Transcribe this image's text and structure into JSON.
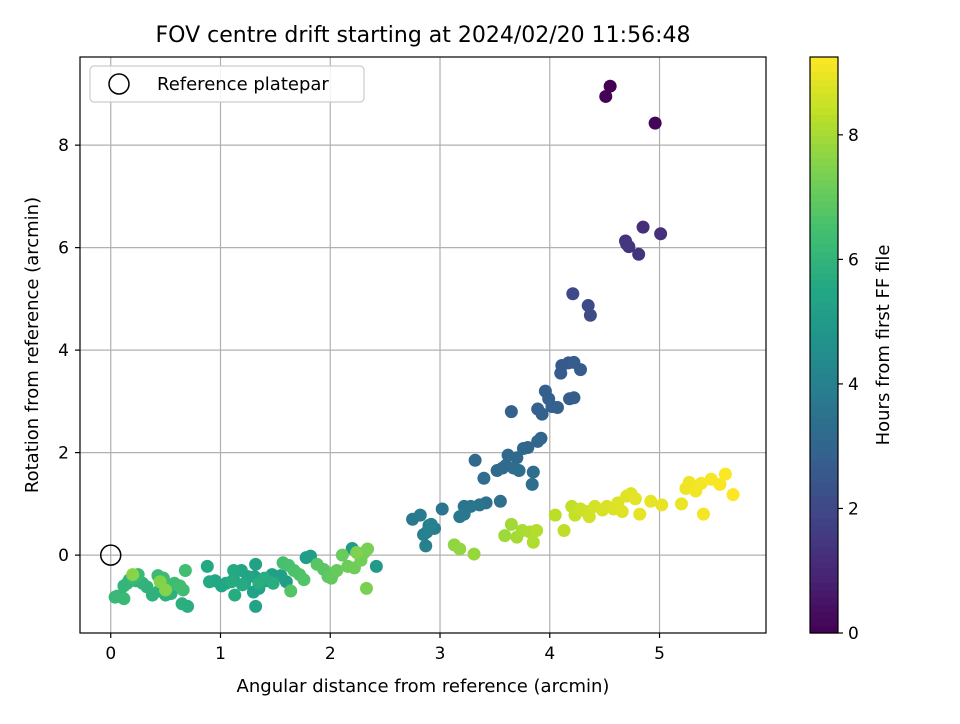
{
  "chart_data": {
    "type": "scatter",
    "title": "FOV centre drift starting at 2024/02/20 11:56:48",
    "xlabel": "Angular distance from reference (arcmin)",
    "ylabel": "Rotation from reference (arcmin)",
    "xlim": [
      -0.28,
      5.97
    ],
    "ylim": [
      -1.52,
      9.72
    ],
    "x_ticks": [
      0,
      1,
      2,
      3,
      4,
      5
    ],
    "y_ticks": [
      0,
      2,
      4,
      6,
      8
    ],
    "grid": true,
    "legend": {
      "location": "upper left",
      "entries": [
        "Reference platepar"
      ]
    },
    "colorbar": {
      "label": "Hours from first FF file",
      "range": [
        0,
        9.25
      ],
      "ticks": [
        0,
        2,
        4,
        6,
        8
      ],
      "colormap": "viridis"
    },
    "reference_point": {
      "x": 0,
      "y": 0
    },
    "points": [
      [
        4.55,
        9.15,
        0.0
      ],
      [
        4.51,
        8.95,
        0.05
      ],
      [
        4.96,
        8.43,
        0.1
      ],
      [
        4.85,
        6.4,
        1.2
      ],
      [
        5.01,
        6.27,
        1.25
      ],
      [
        4.69,
        6.13,
        1.3
      ],
      [
        4.72,
        6.02,
        1.35
      ],
      [
        4.81,
        5.87,
        1.4
      ],
      [
        4.7,
        6.07,
        1.45
      ],
      [
        4.21,
        5.1,
        2.0
      ],
      [
        4.35,
        4.87,
        2.05
      ],
      [
        4.37,
        4.68,
        2.1
      ],
      [
        4.11,
        3.7,
        2.6
      ],
      [
        4.17,
        3.75,
        2.62
      ],
      [
        4.1,
        3.55,
        2.65
      ],
      [
        4.28,
        3.62,
        2.68
      ],
      [
        4.22,
        3.76,
        2.7
      ],
      [
        4.18,
        3.05,
        2.72
      ],
      [
        4.22,
        3.07,
        2.75
      ],
      [
        3.96,
        3.2,
        2.8
      ],
      [
        3.99,
        3.05,
        2.82
      ],
      [
        4.02,
        2.9,
        2.84
      ],
      [
        4.07,
        2.88,
        2.86
      ],
      [
        3.93,
        2.75,
        2.88
      ],
      [
        3.89,
        2.85,
        2.9
      ],
      [
        3.65,
        2.8,
        2.92
      ],
      [
        3.92,
        2.28,
        3.0
      ],
      [
        3.89,
        2.22,
        3.02
      ],
      [
        3.8,
        2.1,
        3.05
      ],
      [
        3.76,
        2.08,
        3.08
      ],
      [
        3.32,
        1.85,
        3.1
      ],
      [
        3.62,
        1.95,
        3.12
      ],
      [
        3.7,
        1.9,
        3.15
      ],
      [
        3.57,
        1.7,
        3.18
      ],
      [
        3.52,
        1.65,
        3.2
      ],
      [
        3.6,
        1.75,
        3.22
      ],
      [
        3.67,
        1.7,
        3.25
      ],
      [
        3.72,
        1.65,
        3.28
      ],
      [
        3.85,
        1.62,
        3.3
      ],
      [
        3.4,
        1.5,
        3.32
      ],
      [
        3.84,
        1.38,
        3.35
      ],
      [
        3.55,
        1.05,
        3.4
      ],
      [
        3.42,
        1.02,
        3.45
      ],
      [
        3.36,
        0.98,
        3.5
      ],
      [
        3.22,
        0.95,
        3.55
      ],
      [
        3.28,
        0.95,
        3.58
      ],
      [
        3.02,
        0.9,
        3.6
      ],
      [
        3.18,
        0.75,
        3.65
      ],
      [
        3.22,
        0.8,
        3.7
      ],
      [
        2.75,
        0.7,
        3.75
      ],
      [
        2.82,
        0.78,
        3.8
      ],
      [
        2.9,
        0.58,
        3.85
      ],
      [
        2.95,
        0.52,
        3.9
      ],
      [
        2.88,
        0.45,
        3.95
      ],
      [
        2.85,
        0.4,
        4.0
      ],
      [
        2.87,
        0.18,
        4.05
      ],
      [
        2.92,
        0.6,
        4.1
      ],
      [
        2.42,
        -0.22,
        5.0
      ],
      [
        2.2,
        0.13,
        5.05
      ],
      [
        1.78,
        -0.05,
        5.1
      ],
      [
        1.82,
        -0.02,
        5.12
      ],
      [
        1.6,
        -0.52,
        5.15
      ],
      [
        1.55,
        -0.4,
        5.18
      ],
      [
        1.47,
        -0.38,
        5.2
      ],
      [
        1.42,
        -0.5,
        5.22
      ],
      [
        1.31,
        -0.42,
        5.25
      ],
      [
        1.32,
        -0.18,
        5.28
      ],
      [
        1.35,
        -0.65,
        5.3
      ],
      [
        1.3,
        -0.72,
        5.32
      ],
      [
        1.32,
        -1.0,
        5.35
      ],
      [
        1.22,
        -0.55,
        5.38
      ],
      [
        1.25,
        -0.42,
        5.4
      ],
      [
        1.19,
        -0.3,
        5.42
      ],
      [
        1.12,
        -0.48,
        5.45
      ],
      [
        1.05,
        -0.55,
        5.48
      ],
      [
        1.01,
        -0.6,
        5.5
      ],
      [
        0.95,
        -0.5,
        5.52
      ],
      [
        0.88,
        -0.22,
        5.55
      ],
      [
        0.9,
        -0.52,
        5.58
      ],
      [
        1.12,
        -0.3,
        5.6
      ],
      [
        1.1,
        -0.52,
        5.62
      ],
      [
        1.2,
        -0.58,
        5.65
      ],
      [
        1.13,
        -0.78,
        5.68
      ],
      [
        1.4,
        -0.45,
        5.7
      ],
      [
        1.48,
        -0.55,
        5.72
      ],
      [
        1.35,
        -0.55,
        5.75
      ],
      [
        0.7,
        -1.0,
        5.8
      ],
      [
        0.65,
        -0.95,
        5.82
      ],
      [
        0.55,
        -0.75,
        5.85
      ],
      [
        0.5,
        -0.78,
        5.88
      ],
      [
        0.44,
        -0.7,
        5.9
      ],
      [
        0.38,
        -0.78,
        5.92
      ],
      [
        0.33,
        -0.62,
        5.95
      ],
      [
        0.29,
        -0.55,
        5.98
      ],
      [
        0.23,
        -0.5,
        6.0
      ],
      [
        0.17,
        -0.48,
        6.02
      ],
      [
        0.15,
        -0.55,
        6.05
      ],
      [
        0.12,
        -0.6,
        6.08
      ],
      [
        0.1,
        -0.82,
        6.1
      ],
      [
        0.06,
        -0.8,
        6.12
      ],
      [
        0.04,
        -0.82,
        6.15
      ],
      [
        0.12,
        -0.85,
        6.18
      ],
      [
        0.2,
        -0.45,
        6.2
      ],
      [
        0.25,
        -0.38,
        6.22
      ],
      [
        0.43,
        -0.4,
        6.25
      ],
      [
        0.48,
        -0.45,
        6.28
      ],
      [
        0.52,
        -0.62,
        6.3
      ],
      [
        0.58,
        -0.55,
        6.32
      ],
      [
        0.66,
        -0.68,
        6.35
      ],
      [
        0.63,
        -0.6,
        6.38
      ],
      [
        0.68,
        -0.3,
        6.4
      ],
      [
        1.57,
        -0.15,
        6.5
      ],
      [
        1.62,
        -0.2,
        6.55
      ],
      [
        1.67,
        -0.3,
        6.6
      ],
      [
        1.72,
        -0.38,
        6.65
      ],
      [
        1.76,
        -0.48,
        6.7
      ],
      [
        1.64,
        -0.7,
        6.75
      ],
      [
        1.88,
        -0.18,
        6.8
      ],
      [
        1.94,
        -0.28,
        6.85
      ],
      [
        1.98,
        -0.42,
        6.9
      ],
      [
        2.03,
        -0.35,
        6.95
      ],
      [
        2.01,
        -0.45,
        7.0
      ],
      [
        2.06,
        -0.3,
        7.05
      ],
      [
        2.11,
        0.0,
        7.1
      ],
      [
        2.16,
        -0.22,
        7.15
      ],
      [
        2.22,
        -0.25,
        7.2
      ],
      [
        2.28,
        -0.1,
        7.25
      ],
      [
        2.31,
        0.05,
        7.3
      ],
      [
        2.34,
        0.12,
        7.35
      ],
      [
        2.33,
        -0.65,
        7.4
      ],
      [
        2.24,
        0.05,
        7.45
      ],
      [
        0.45,
        -0.52,
        7.5
      ],
      [
        0.5,
        -0.68,
        7.55
      ],
      [
        0.2,
        -0.38,
        7.6
      ],
      [
        3.13,
        0.2,
        7.7
      ],
      [
        3.18,
        0.12,
        7.75
      ],
      [
        3.31,
        0.02,
        7.8
      ],
      [
        3.59,
        0.38,
        7.9
      ],
      [
        3.65,
        0.6,
        7.95
      ],
      [
        3.7,
        0.35,
        8.0
      ],
      [
        3.75,
        0.48,
        8.05
      ],
      [
        3.82,
        0.45,
        8.1
      ],
      [
        3.85,
        0.25,
        8.15
      ],
      [
        3.88,
        0.48,
        8.2
      ],
      [
        4.05,
        0.78,
        8.3
      ],
      [
        4.13,
        0.48,
        8.35
      ],
      [
        4.2,
        0.95,
        8.4
      ],
      [
        4.23,
        0.78,
        8.45
      ],
      [
        4.28,
        0.9,
        8.5
      ],
      [
        4.33,
        0.85,
        8.55
      ],
      [
        4.36,
        0.75,
        8.6
      ],
      [
        4.41,
        0.95,
        8.65
      ],
      [
        4.48,
        0.88,
        8.7
      ],
      [
        4.52,
        0.95,
        8.72
      ],
      [
        4.58,
        0.9,
        8.75
      ],
      [
        4.62,
        1.02,
        8.78
      ],
      [
        4.66,
        0.85,
        8.8
      ],
      [
        4.7,
        1.15,
        8.82
      ],
      [
        4.74,
        1.2,
        8.85
      ],
      [
        4.78,
        1.1,
        8.88
      ],
      [
        4.82,
        0.8,
        8.9
      ],
      [
        4.92,
        1.05,
        8.92
      ],
      [
        5.02,
        0.98,
        8.95
      ],
      [
        5.2,
        1.0,
        8.98
      ],
      [
        5.24,
        1.3,
        9.0
      ],
      [
        5.27,
        1.42,
        9.02
      ],
      [
        5.3,
        1.32,
        9.05
      ],
      [
        5.33,
        1.25,
        9.08
      ],
      [
        5.38,
        1.4,
        9.1
      ],
      [
        5.4,
        0.8,
        9.12
      ],
      [
        5.47,
        1.48,
        9.15
      ],
      [
        5.55,
        1.38,
        9.18
      ],
      [
        5.6,
        1.58,
        9.2
      ],
      [
        5.67,
        1.18,
        9.25
      ]
    ]
  }
}
